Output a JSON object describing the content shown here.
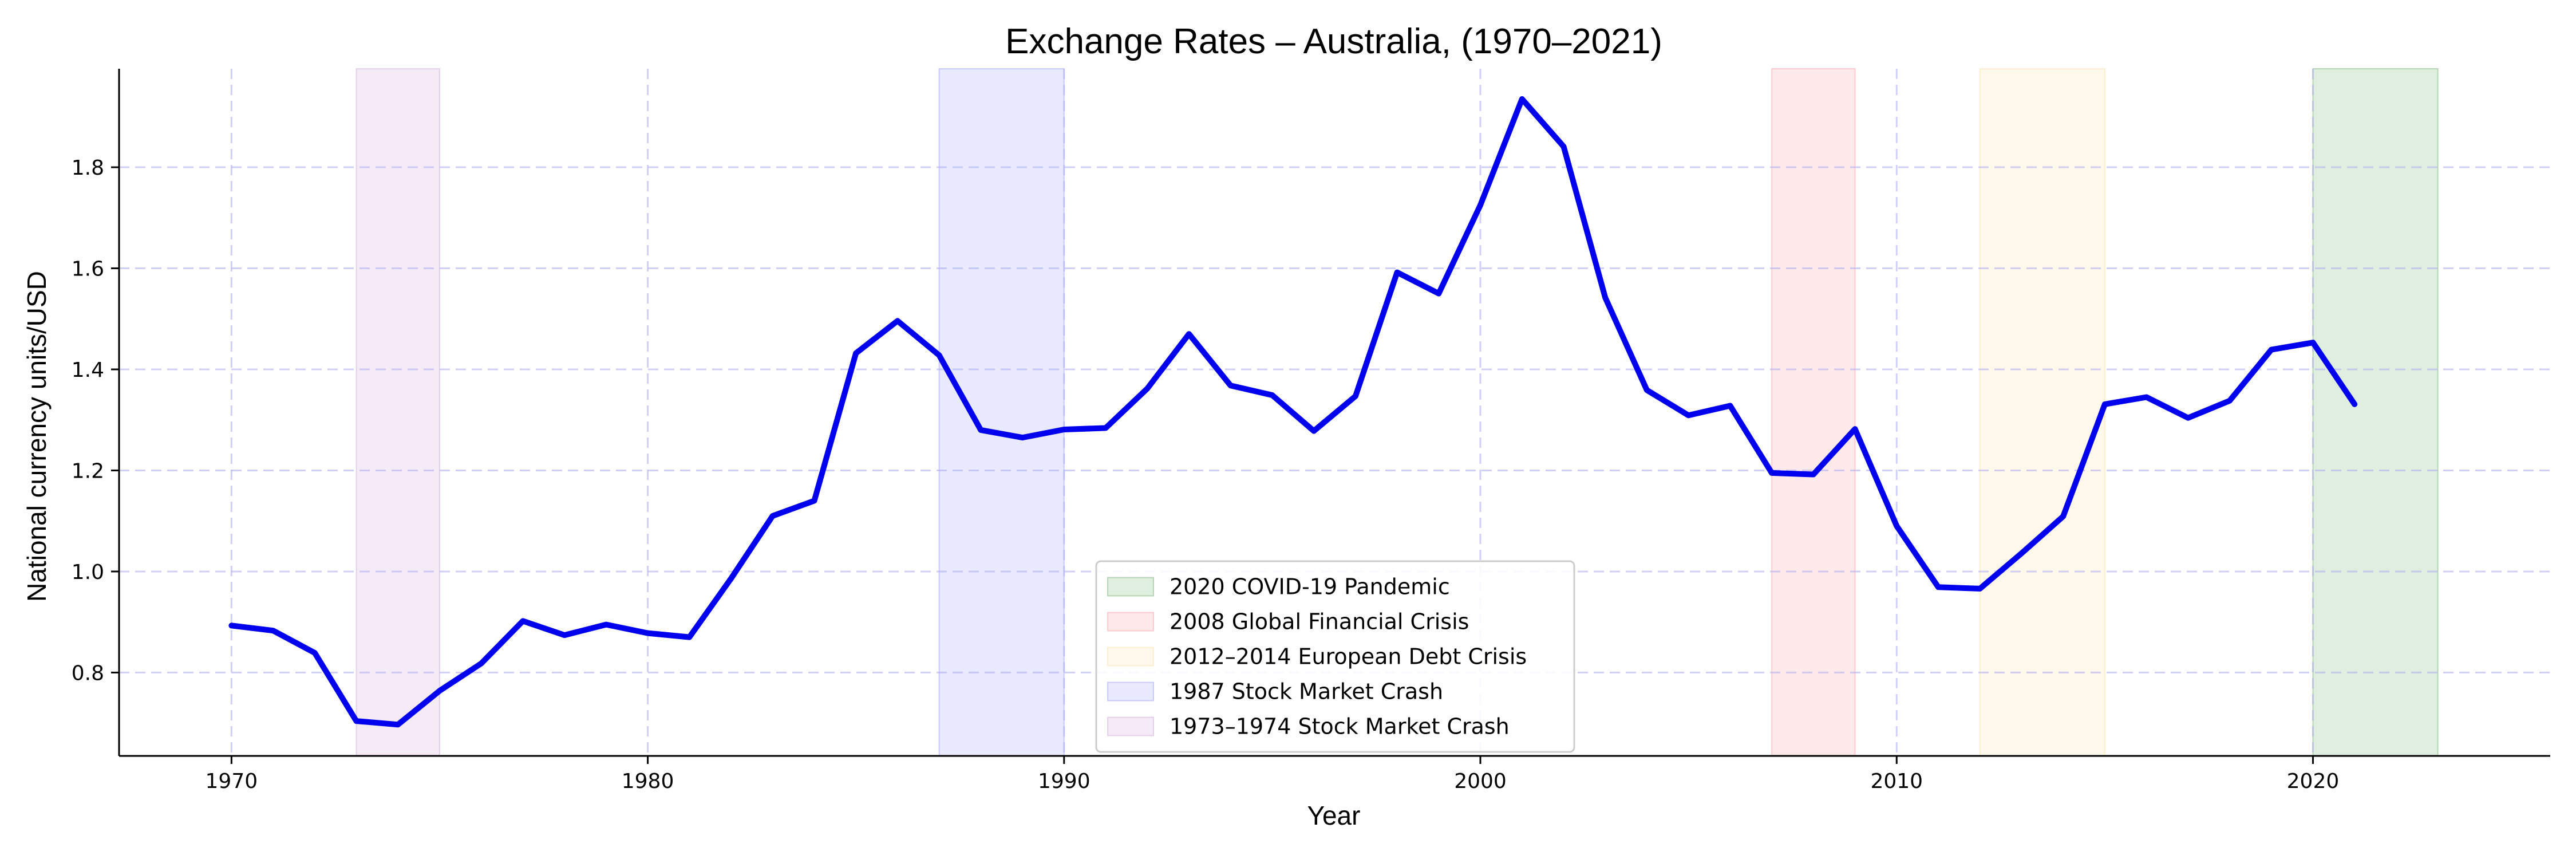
{
  "chart_data": {
    "type": "line",
    "title": "Exchange Rates – Australia, (1970–2021)",
    "xlabel": "Year",
    "ylabel": "National currency units/USD",
    "xlim": [
      1967.3,
      2025.7
    ],
    "ylim": [
      0.635,
      1.995
    ],
    "xticks": [
      1970,
      1980,
      1990,
      2000,
      2010,
      2020
    ],
    "yticks": [
      0.8,
      1.0,
      1.2,
      1.4,
      1.6,
      1.8
    ],
    "xtick_labels": [
      "1970",
      "1980",
      "1990",
      "2000",
      "2010",
      "2020"
    ],
    "ytick_labels": [
      "0.8",
      "1.0",
      "1.2",
      "1.4",
      "1.6",
      "1.8"
    ],
    "grid": true,
    "legend_position": "bottom-center",
    "series": [
      {
        "color": "#0000ee",
        "x": [
          1970,
          1971,
          1972,
          1973,
          1974,
          1975,
          1976,
          1977,
          1978,
          1979,
          1980,
          1981,
          1982,
          1983,
          1984,
          1985,
          1986,
          1987,
          1988,
          1989,
          1990,
          1991,
          1992,
          1993,
          1994,
          1995,
          1996,
          1997,
          1998,
          1999,
          2000,
          2001,
          2002,
          2003,
          2004,
          2005,
          2006,
          2007,
          2008,
          2009,
          2010,
          2011,
          2012,
          2013,
          2014,
          2015,
          2016,
          2017,
          2018,
          2019,
          2020,
          2021
        ],
        "y": [
          0.893,
          0.883,
          0.839,
          0.704,
          0.697,
          0.764,
          0.818,
          0.902,
          0.874,
          0.895,
          0.878,
          0.87,
          0.986,
          1.11,
          1.14,
          1.432,
          1.496,
          1.428,
          1.28,
          1.265,
          1.281,
          1.284,
          1.362,
          1.47,
          1.368,
          1.349,
          1.278,
          1.347,
          1.592,
          1.55,
          1.725,
          1.935,
          1.841,
          1.542,
          1.359,
          1.309,
          1.328,
          1.195,
          1.192,
          1.282,
          1.09,
          0.969,
          0.966,
          1.036,
          1.109,
          1.331,
          1.345,
          1.304,
          1.338,
          1.439,
          1.453,
          1.331
        ]
      }
    ],
    "shaded_periods": [
      {
        "label": "2020 COVID-19 Pandemic",
        "start": 2020,
        "end": 2023,
        "color": "#2e8b2e"
      },
      {
        "label": "2008 Global Financial Crisis",
        "start": 2007,
        "end": 2009,
        "color": "#ff6a7a"
      },
      {
        "label": "2012–2014 European Debt Crisis",
        "start": 2012,
        "end": 2015,
        "color": "#ffd27a"
      },
      {
        "label": "1987 Stock Market Crash",
        "start": 1987,
        "end": 1990,
        "color": "#6a6aff"
      },
      {
        "label": "1973–1974 Stock Market Crash",
        "start": 1973,
        "end": 1975,
        "color": "#b27ac8"
      }
    ]
  }
}
